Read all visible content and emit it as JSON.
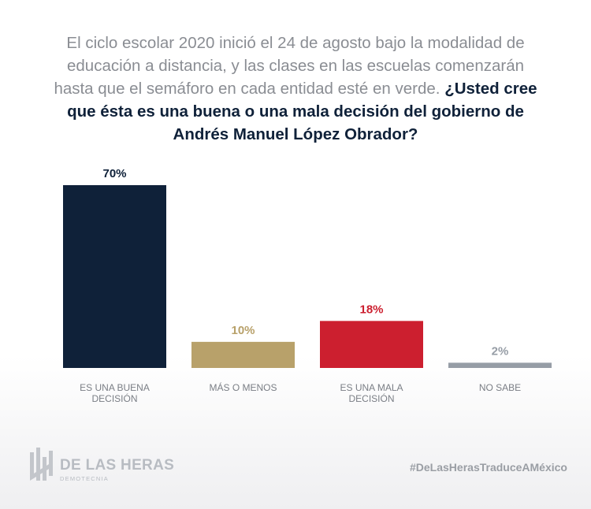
{
  "question": {
    "intro": "El ciclo escolar 2020 inició el 24 de agosto bajo la modalidad de educación a distancia, y las clases en las escuelas comenzarán hasta que el semáforo en cada entidad esté en verde.",
    "highlight": "¿Usted cree que ésta es una buena o una mala decisión del gobierno de Andrés Manuel López Obrador?"
  },
  "chart_data": {
    "type": "bar",
    "categories": [
      "ES UNA BUENA DECISIÓN",
      "MÁS O MENOS",
      "ES UNA MALA DECISIÓN",
      "NO SABE"
    ],
    "values": [
      70,
      10,
      18,
      2
    ],
    "value_labels": [
      "70%",
      "10%",
      "18%",
      "2%"
    ],
    "colors": [
      "#0f2139",
      "#b8a16a",
      "#cc1f2f",
      "#969da6"
    ],
    "label_colors": [
      "#0f2139",
      "#b8a16a",
      "#cc1f2f",
      "#969da6"
    ],
    "ylim": [
      0,
      70
    ]
  },
  "brand": {
    "name": "DE LAS HERAS",
    "sub": "DEMOTECNIA",
    "hashtag": "#DeLasHerasTraduceAMéxico"
  }
}
